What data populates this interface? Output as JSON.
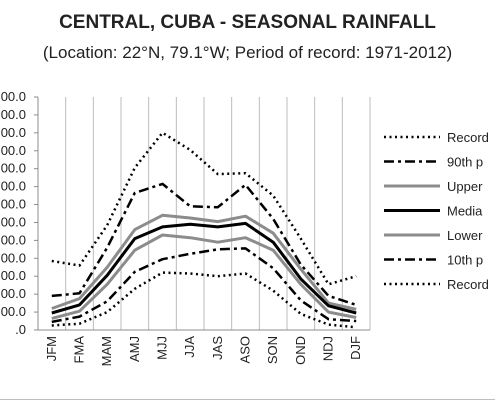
{
  "chart_data": {
    "type": "line",
    "title": "CENTRAL, CUBA - SEASONAL RAINFALL",
    "subtitle": "(Location: 22°N, 79.1°W; Period of record: 1971-2012)",
    "categories": [
      "JFM",
      "FMA",
      "MAM",
      "AMJ",
      "MJJ",
      "JJA",
      "JAS",
      "ASO",
      "SON",
      "OND",
      "NDJ",
      "DJF"
    ],
    "y_tick_labels": [
      ".0",
      "00.0",
      "00.0",
      "00.0",
      "00.0",
      "00.0",
      "00.0",
      "00.0",
      "00.0",
      "00.0",
      "00.0",
      "00.0",
      "00.0",
      "00.0"
    ],
    "ylim": [
      0,
      13
    ],
    "grid": "vertical",
    "legend_position": "right",
    "series": [
      {
        "name": "Record",
        "style": "dotted",
        "color": "#000000",
        "values": [
          3.85,
          3.6,
          5.85,
          9.05,
          11.0,
          10.05,
          8.7,
          8.75,
          7.5,
          5.1,
          2.55,
          3.0
        ]
      },
      {
        "name": "90th p",
        "style": "dashdot",
        "color": "#000000",
        "values": [
          1.9,
          2.05,
          4.6,
          7.65,
          8.15,
          6.9,
          6.85,
          8.1,
          6.2,
          3.65,
          1.9,
          1.4
        ]
      },
      {
        "name": "Upper",
        "style": "solid",
        "color": "#8c8c8c",
        "values": [
          1.2,
          1.75,
          3.5,
          5.6,
          6.4,
          6.25,
          6.05,
          6.35,
          5.4,
          3.4,
          1.5,
          1.15
        ]
      },
      {
        "name": "Media",
        "style": "solid",
        "color": "#000000",
        "values": [
          0.95,
          1.4,
          3.05,
          5.1,
          5.75,
          5.9,
          5.75,
          5.95,
          4.9,
          2.85,
          1.35,
          0.95
        ]
      },
      {
        "name": "Lower",
        "style": "solid",
        "color": "#8c8c8c",
        "values": [
          0.65,
          1.05,
          2.55,
          4.45,
          5.3,
          5.15,
          4.9,
          5.15,
          4.45,
          2.55,
          1.0,
          0.7
        ]
      },
      {
        "name": "10th p",
        "style": "dashdot",
        "color": "#000000",
        "values": [
          0.45,
          0.75,
          1.6,
          3.25,
          3.95,
          4.25,
          4.5,
          4.55,
          3.45,
          1.65,
          0.6,
          0.5
        ]
      },
      {
        "name": "Record",
        "style": "dotted",
        "color": "#000000",
        "values": [
          0.25,
          0.35,
          1.0,
          2.3,
          3.2,
          3.15,
          3.0,
          3.15,
          2.2,
          0.9,
          0.3,
          0.15
        ]
      }
    ]
  }
}
